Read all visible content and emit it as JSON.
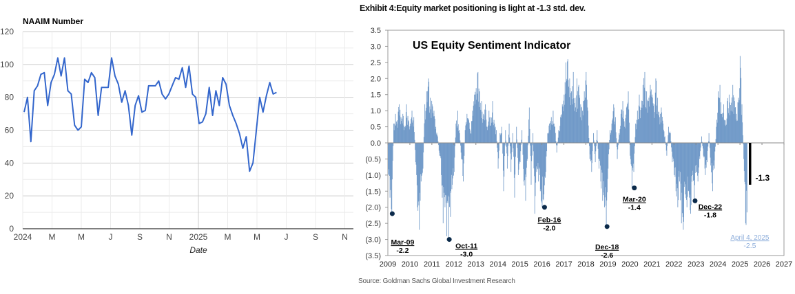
{
  "chart_data": [
    {
      "type": "line",
      "title": "NAAIM Number",
      "xlabel": "Date",
      "ylabel": "",
      "ylim": [
        0,
        120
      ],
      "yticks": [
        "0",
        "20",
        "40",
        "60",
        "80",
        "100",
        "120"
      ],
      "xticks": [
        "2024",
        "M",
        "M",
        "J",
        "S",
        "N",
        "2025",
        "M",
        "M",
        "J",
        "S",
        "N"
      ],
      "xlim": [
        "2024-01",
        "2025-11"
      ],
      "grid": true,
      "legend": "none",
      "line_color": "#3366cc",
      "series": [
        {
          "name": "NAAIM Number",
          "x_weeks_from_start": [
            0,
            1,
            2,
            3,
            4,
            5,
            6,
            7,
            8,
            9,
            10,
            11,
            12,
            13,
            14,
            15,
            16,
            17,
            18,
            19,
            20,
            21,
            22,
            23,
            24,
            25,
            26,
            27,
            28,
            29,
            30,
            31,
            32,
            33,
            34,
            35,
            36,
            37,
            38,
            39,
            40,
            41,
            42,
            43,
            44,
            45,
            46,
            47,
            48,
            49,
            50,
            51,
            52,
            53,
            54,
            55,
            56,
            57,
            58,
            59,
            60,
            61,
            62,
            63,
            64,
            65,
            66,
            67,
            68,
            69,
            70,
            71,
            72,
            73,
            74,
            75
          ],
          "values": [
            71,
            80,
            53,
            84,
            87,
            94,
            95,
            75,
            89,
            94,
            104,
            93,
            104,
            84,
            82,
            63,
            60,
            62,
            91,
            89,
            95,
            92,
            69,
            86,
            86,
            86,
            104,
            93,
            88,
            77,
            84,
            75,
            57,
            75,
            81,
            71,
            72,
            87,
            87,
            87,
            90,
            82,
            79,
            82,
            87,
            92,
            91,
            98,
            86,
            99,
            82,
            80,
            64,
            65,
            70,
            86,
            69,
            84,
            75,
            92,
            88,
            75,
            69,
            64,
            58,
            49,
            56,
            35,
            40,
            60,
            80,
            71,
            81,
            89,
            82,
            83
          ]
        }
      ]
    },
    {
      "type": "bar",
      "title": "US Equity Sentiment Indicator",
      "exhibit_title": "Exhibit 4:Equity market positioning is light at -1.3 std. dev.",
      "source": "Source: Goldman Sachs Global Investment Research",
      "xlabel": "",
      "ylabel": "",
      "ylim": [
        -3.5,
        3.5
      ],
      "yticks": [
        "3.5",
        "3.0",
        "2.5",
        "2.0",
        "1.5",
        "1.0",
        "0.5",
        "0.0",
        "(0.5)",
        "(1.0)",
        "(1.5)",
        "(2.0)",
        "(2.5)",
        "(3.0)",
        "(3.5)"
      ],
      "xticks": [
        "2009",
        "2010",
        "2011",
        "2012",
        "2013",
        "2014",
        "2015",
        "2016",
        "2017",
        "2018",
        "2019",
        "2020",
        "2021",
        "2022",
        "2023",
        "2024",
        "2025",
        "2026",
        "2027"
      ],
      "xlim": [
        2009,
        2027
      ],
      "bar_color": "#7099c8",
      "series": [
        {
          "name": "US Equity Sentiment Indicator (std. dev.)",
          "start_year": 2009.0,
          "step_years": 0.0833,
          "values": [
            -1.0,
            -1.7,
            -2.2,
            0.6,
            0.9,
            0.7,
            1.2,
            0.8,
            0.9,
            0.5,
            1.2,
            0.7,
            0.6,
            1.0,
            0.8,
            -0.6,
            -2.0,
            -2.7,
            -1.2,
            -0.8,
            1.2,
            1.6,
            2.0,
            1.4,
            1.2,
            1.0,
            0.5,
            0.2,
            -0.4,
            -1.0,
            -2.5,
            -2.0,
            -2.9,
            -3.0,
            -2.3,
            -1.3,
            -0.9,
            0.6,
            1.0,
            0.3,
            -0.5,
            -1.2,
            0.4,
            0.9,
            0.7,
            0.3,
            1.0,
            1.5,
            1.7,
            2.2,
            1.6,
            1.3,
            0.9,
            1.2,
            0.5,
            1.0,
            0.8,
            1.3,
            0.6,
            0.4,
            -0.8,
            0.3,
            0.5,
            -1.5,
            0.4,
            -0.8,
            0.6,
            -0.9,
            0.3,
            -1.7,
            0.5,
            -1.0,
            -0.6,
            0.4,
            -1.2,
            -1.8,
            -0.5,
            1.1,
            -1.3,
            0.3,
            -2.2,
            -0.9,
            -1.2,
            -1.5,
            -2.0,
            -1.6,
            -0.9,
            0.3,
            0.6,
            0.8,
            1.0,
            0.5,
            -0.3,
            0.4,
            0.8,
            1.2,
            1.5,
            2.5,
            2.6,
            2.0,
            1.6,
            2.2,
            1.4,
            2.0,
            1.8,
            1.2,
            1.0,
            1.6,
            2.2,
            1.0,
            -0.5,
            -0.9,
            0.3,
            -0.6,
            0.4,
            -0.8,
            -1.2,
            -1.8,
            -2.0,
            -2.6,
            -0.8,
            0.4,
            0.6,
            1.2,
            0.8,
            -0.5,
            0.3,
            0.9,
            1.3,
            0.5,
            1.1,
            1.6,
            -0.4,
            -1.4,
            -0.9,
            0.6,
            1.0,
            1.5,
            1.1,
            1.8,
            2.2,
            1.6,
            1.3,
            1.8,
            1.5,
            1.2,
            2.0,
            1.4,
            0.8,
            1.1,
            0.6,
            0.2,
            -0.4,
            0.5,
            0.3,
            -0.6,
            -1.0,
            -1.5,
            -2.0,
            -1.2,
            -2.5,
            -2.7,
            -1.6,
            -2.0,
            -1.5,
            -2.2,
            -1.0,
            -1.8,
            -0.9,
            -1.2,
            -0.5,
            0.2,
            -0.4,
            -1.0,
            -0.6,
            0.3,
            -0.7,
            -1.5,
            -0.8,
            0.5,
            1.6,
            1.8,
            0.9,
            1.2,
            0.7,
            1.3,
            1.5,
            1.0,
            1.8,
            1.3,
            0.9,
            1.4,
            2.7,
            1.2,
            -0.5,
            -2.5
          ]
        }
      ],
      "annotations": [
        {
          "label": "Mar-09",
          "value_label": "-2.2",
          "x": 2009.2,
          "y": -2.2
        },
        {
          "label": "Oct-11",
          "value_label": "-3.0",
          "x": 2011.79,
          "y": -3.0
        },
        {
          "label": "Feb-16",
          "value_label": "-2.0",
          "x": 2016.12,
          "y": -2.0
        },
        {
          "label": "Dec-18",
          "value_label": "-2.6",
          "x": 2018.96,
          "y": -2.6
        },
        {
          "label": "Mar-20",
          "value_label": "-1.4",
          "x": 2020.2,
          "y": -1.4
        },
        {
          "label": "Dec-22",
          "value_label": "-1.8",
          "x": 2022.96,
          "y": -1.8
        },
        {
          "label": "April 4, 2025",
          "value_label": "-2.5",
          "x": 2025.26,
          "y": -2.5,
          "color": "#8eaedb"
        }
      ],
      "current": {
        "value": -1.3,
        "label": "-1.3",
        "x": 2025.45,
        "color": "#000000"
      }
    }
  ]
}
